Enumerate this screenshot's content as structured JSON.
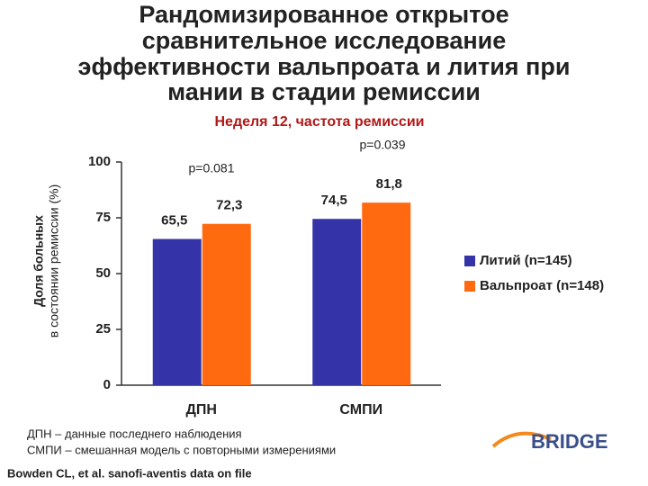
{
  "chart_data": {
    "type": "bar",
    "title": [
      "Рандомизированное открытое",
      "сравнительное исследование",
      "эффективности вальпроата и лития при",
      "мании в стадии ремиссии"
    ],
    "subtitle": "Неделя 12, частота ремиссии",
    "y_label": [
      "Доля больных",
      "в состоянии ремиссии (%)"
    ],
    "categories": [
      "ДПН",
      "СМПИ"
    ],
    "series": [
      {
        "name": "Литий (n=145)",
        "color": "#3434a8",
        "values": [
          65.5,
          74.5
        ],
        "value_labels": [
          "65,5",
          "74,5"
        ]
      },
      {
        "name": "Вальпроат (n=148)",
        "color": "#ff6a10",
        "values": [
          72.3,
          81.8
        ],
        "value_labels": [
          "72,3",
          "81,8"
        ]
      }
    ],
    "annotations": [
      "p=0.081",
      "p=0.039"
    ],
    "ylim": [
      0,
      100
    ],
    "yticks": [
      0,
      25,
      50,
      75,
      100
    ],
    "footnotes": [
      "ДПН – данные последнего наблюдения",
      "СМПИ – смешанная модель с повторными измерениями"
    ],
    "source": "Bowden CL, et al. sanofi-aventis data on file",
    "logo": "BRIDGE"
  }
}
